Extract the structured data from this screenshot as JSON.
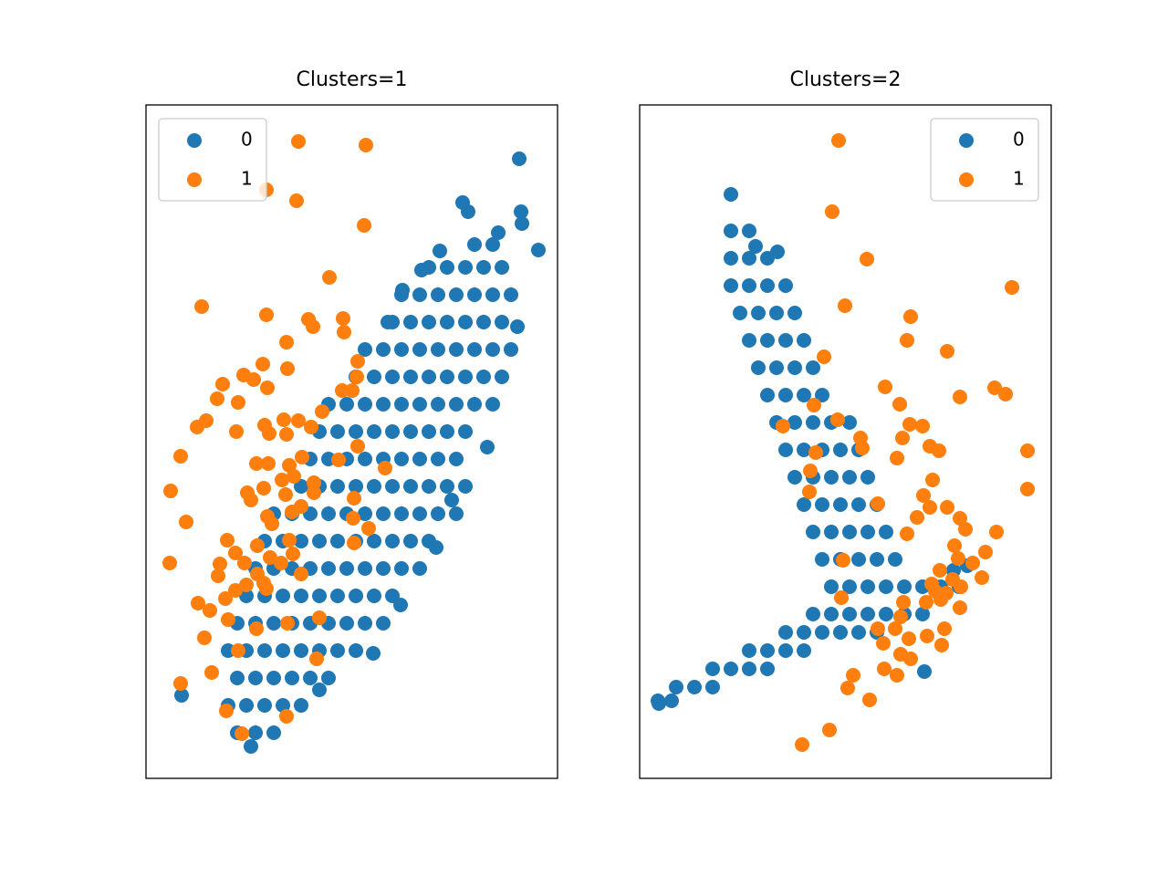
{
  "chart_data": [
    {
      "type": "scatter",
      "title": "Clusters=1",
      "xlim": [
        0,
        45.1
      ],
      "ylim": [
        0,
        73.8
      ],
      "legend": "upper left",
      "series": [
        {
          "name": "0",
          "color": "#1f77b4",
          "x": [
            10,
            12,
            14,
            9,
            11,
            13,
            15,
            17,
            10,
            12,
            14,
            16,
            18,
            20,
            9,
            11,
            13,
            15,
            17,
            19,
            21,
            23,
            10,
            12,
            14,
            16,
            18,
            20,
            22,
            24,
            26,
            11,
            13,
            15,
            17,
            19,
            21,
            23,
            25,
            27,
            12,
            14,
            16,
            18,
            20,
            22,
            24,
            26,
            28,
            30,
            13,
            15,
            17,
            19,
            21,
            23,
            25,
            27,
            29,
            31,
            14,
            16,
            18,
            20,
            22,
            24,
            26,
            28,
            30,
            32,
            34,
            17,
            19,
            21,
            23,
            25,
            27,
            29,
            31,
            33,
            35,
            18,
            20,
            22,
            24,
            26,
            28,
            30,
            32,
            34,
            19,
            21,
            23,
            25,
            27,
            29,
            31,
            33,
            35,
            20,
            22,
            24,
            26,
            28,
            30,
            32,
            34,
            36,
            38,
            23,
            25,
            27,
            29,
            31,
            33,
            35,
            37,
            39,
            24,
            26,
            28,
            30,
            32,
            34,
            36,
            38,
            40,
            27,
            29,
            31,
            33,
            35,
            37,
            39,
            28,
            30,
            32,
            34,
            36,
            38,
            40,
            31,
            33,
            35,
            37,
            39,
            36,
            38,
            40.9,
            34.7,
            35.3,
            41.1,
            41.2,
            43,
            38.6,
            32.2,
            37.4,
            3.9,
            11.5,
            24.9,
            27.9,
            19,
            40.7,
            33.5,
            31.8,
            30.2,
            28.1,
            26.5
          ],
          "y": [
            5,
            5,
            5,
            8,
            8,
            8,
            8,
            8,
            11,
            11,
            11,
            11,
            11,
            11,
            14,
            14,
            14,
            14,
            14,
            14,
            14,
            14,
            17,
            17,
            17,
            17,
            17,
            17,
            17,
            17,
            17,
            20,
            20,
            20,
            20,
            20,
            20,
            20,
            20,
            20,
            23,
            23,
            23,
            23,
            23,
            23,
            23,
            23,
            23,
            23,
            26,
            26,
            26,
            26,
            26,
            26,
            26,
            26,
            26,
            26,
            29,
            29,
            29,
            29,
            29,
            29,
            29,
            29,
            29,
            29,
            29,
            32,
            32,
            32,
            32,
            32,
            32,
            32,
            32,
            32,
            32,
            35,
            35,
            35,
            35,
            35,
            35,
            35,
            35,
            35,
            38,
            38,
            38,
            38,
            38,
            38,
            38,
            38,
            38,
            41,
            41,
            41,
            41,
            41,
            41,
            41,
            41,
            41,
            41,
            44,
            44,
            44,
            44,
            44,
            44,
            44,
            44,
            44,
            47,
            47,
            47,
            47,
            47,
            47,
            47,
            47,
            47,
            50,
            50,
            50,
            50,
            50,
            50,
            50,
            53,
            53,
            53,
            53,
            53,
            53,
            53,
            56,
            56,
            56,
            56,
            56,
            58.5,
            58.5,
            67.9,
            63.1,
            62.1,
            62.1,
            60.8,
            57.9,
            59.8,
            57.8,
            36.3,
            9.1,
            3.5,
            13.7,
            19,
            9.7,
            49.5,
            30.5,
            25.3,
            55.7,
            53.5,
            50
          ]
        },
        {
          "name": "1",
          "color": "#ff7f0e",
          "x": [
            16.7,
            24.1,
            13.2,
            16.5,
            23.9,
            20.1,
            6.1,
            13.2,
            17.8,
            21.6,
            18.3,
            21.7,
            15.4,
            12.8,
            15.5,
            23.2,
            10.7,
            11.8,
            8.4,
            13.3,
            23.1,
            21.5,
            22.6,
            7.8,
            10.1,
            19.3,
            6.6,
            5.6,
            15.1,
            16.7,
            13,
            13.5,
            15.4,
            9.9,
            18.1,
            23.2,
            3.8,
            17.1,
            12.1,
            13.4,
            15.7,
            21.1,
            26.2,
            14.9,
            16.2,
            18.4,
            2.7,
            11.1,
            12.9,
            15.3,
            18.4,
            11.5,
            17,
            22.8,
            13.3,
            16,
            4.4,
            13.8,
            22.7,
            24.4,
            8.9,
            12.2,
            15.7,
            22.8,
            9.8,
            13.6,
            16.1,
            2.6,
            8.1,
            10.8,
            14.8,
            7.9,
            12.2,
            17,
            12.9,
            11,
            13.2,
            9.8,
            5.7,
            8.7,
            7,
            12.1,
            15.5,
            19,
            9,
            6.4,
            10.1,
            18.7,
            7.2,
            3.8,
            8.8,
            10.5,
            15.4
          ],
          "y": [
            69.8,
            69.4,
            64.5,
            63.3,
            60.6,
            54.9,
            51.7,
            50.8,
            50.3,
            50.4,
            49.5,
            48.9,
            47.8,
            45.4,
            44.9,
            45.7,
            44.2,
            43.7,
            43.2,
            42.8,
            44,
            42.5,
            42.5,
            41.6,
            41.2,
            40.2,
            39.2,
            38.5,
            39.3,
            39.2,
            38.7,
            37.8,
            37.7,
            38,
            38.5,
            36.4,
            35.3,
            35.2,
            34.5,
            34.5,
            34.3,
            34.9,
            34,
            32.7,
            33.1,
            32.4,
            31.5,
            31.3,
            31.8,
            31.1,
            31.3,
            30.5,
            29.8,
            30.7,
            28.7,
            29.2,
            28.1,
            27.9,
            28.5,
            27.4,
            26.1,
            25.5,
            26.1,
            25.8,
            24.7,
            24.2,
            24.6,
            23.6,
            23.5,
            23.6,
            23.6,
            22.2,
            22.4,
            22.4,
            21.4,
            21.2,
            20.8,
            20.6,
            19.2,
            19.7,
            18.4,
            16.4,
            17,
            17.6,
            17.4,
            15.4,
            14,
            13.1,
            11.6,
            10.4,
            7.4,
            4.9,
            6.8
          ]
        }
      ]
    },
    {
      "type": "scatter",
      "title": "Clusters=2",
      "xlim": [
        0,
        45.1
      ],
      "ylim": [
        0,
        73.8
      ],
      "legend": "upper right",
      "series": [
        {
          "name": "0",
          "color": "#1f77b4",
          "x": [
            10,
            10,
            12,
            10,
            12,
            14,
            10,
            12,
            14,
            16,
            11,
            13,
            15,
            17,
            12,
            14,
            16,
            18,
            13,
            15,
            17,
            19,
            14,
            16,
            18,
            20,
            15,
            17,
            19,
            21,
            23,
            16,
            18,
            20,
            22,
            24,
            17,
            19,
            21,
            23,
            25,
            18,
            20,
            22,
            24,
            26,
            19,
            21,
            23,
            25,
            27,
            20,
            22,
            24,
            26,
            28,
            21,
            23,
            25,
            27,
            29,
            31,
            33,
            35,
            19,
            21,
            23,
            25,
            27,
            29,
            31,
            16,
            18,
            20,
            22,
            24,
            26,
            12,
            14,
            16,
            18,
            8,
            10,
            12,
            14,
            4,
            6,
            8,
            2,
            3.5,
            12.7,
            15.1,
            31.2,
            34.4,
            35.9,
            2.1
          ],
          "y": [
            64,
            60,
            60,
            57,
            57,
            57,
            54,
            54,
            54,
            54,
            51,
            51,
            51,
            51,
            48,
            48,
            48,
            48,
            45,
            45,
            45,
            45,
            42,
            42,
            42,
            42,
            39,
            39,
            39,
            39,
            39,
            36,
            36,
            36,
            36,
            36,
            33,
            33,
            33,
            33,
            33,
            30,
            30,
            30,
            30,
            30,
            27,
            27,
            27,
            27,
            27,
            24,
            24,
            24,
            24,
            24,
            21,
            21,
            21,
            21,
            21,
            21,
            21,
            21,
            18,
            18,
            18,
            18,
            18,
            18,
            18,
            16,
            16,
            16,
            16,
            16,
            16,
            14,
            14,
            14,
            14,
            12,
            12,
            12,
            12,
            10,
            10,
            10,
            8.5,
            8.5,
            58.3,
            57.7,
            11.7,
            22.8,
            23.3,
            8.2
          ]
        },
        {
          "name": "1",
          "color": "#ff7f0e",
          "x": [
            21.8,
            21.1,
            24.9,
            40.8,
            22.5,
            29.7,
            29.3,
            33.7,
            20.2,
            26.9,
            38.9,
            40.1,
            35.1,
            28.5,
            19.1,
            15.7,
            21.7,
            29.6,
            31,
            28.8,
            24.2,
            24.4,
            31.8,
            32.8,
            19.3,
            28.2,
            42.5,
            18.7,
            32.1,
            18.6,
            42.5,
            31.1,
            26.1,
            31.8,
            33.7,
            30.4,
            35.1,
            35.7,
            29.3,
            39.1,
            34.5,
            37.9,
            34.9,
            22.3,
            36.5,
            32.9,
            37.5,
            34.3,
            32,
            35.2,
            32.4,
            33.6,
            22.1,
            33,
            28.9,
            31.4,
            28.6,
            35.1,
            26.1,
            28,
            31.5,
            33.4,
            29.5,
            26.7,
            33.1,
            28.6,
            29.7,
            26.8,
            28.2,
            23.4,
            22.8,
            25.2,
            20.8,
            17.8
          ],
          "y": [
            69.9,
            62.1,
            56.9,
            53.8,
            51.8,
            50.6,
            48,
            46.8,
            46.2,
            42.9,
            42.8,
            42.1,
            41.8,
            41,
            40.9,
            38.6,
            39.3,
            38.8,
            38.6,
            37.3,
            37.3,
            36.2,
            36.4,
            35.9,
            35.7,
            35.1,
            35.9,
            33.7,
            32.7,
            31.4,
            31.7,
            31,
            30.1,
            29.7,
            29.7,
            28.6,
            28.5,
            27.3,
            26.8,
            27,
            25.5,
            24.8,
            24.1,
            23.9,
            23.6,
            22.8,
            22,
            21.8,
            21.3,
            21,
            20.5,
            20.3,
            19.8,
            19.6,
            19.3,
            19.3,
            17.7,
            18.7,
            16.4,
            16.4,
            15.6,
            16.4,
            15.3,
            14.8,
            14.6,
            13.6,
            13.1,
            12,
            11.3,
            11.3,
            9.9,
            8.6,
            5.3,
            3.7
          ]
        }
      ]
    }
  ]
}
